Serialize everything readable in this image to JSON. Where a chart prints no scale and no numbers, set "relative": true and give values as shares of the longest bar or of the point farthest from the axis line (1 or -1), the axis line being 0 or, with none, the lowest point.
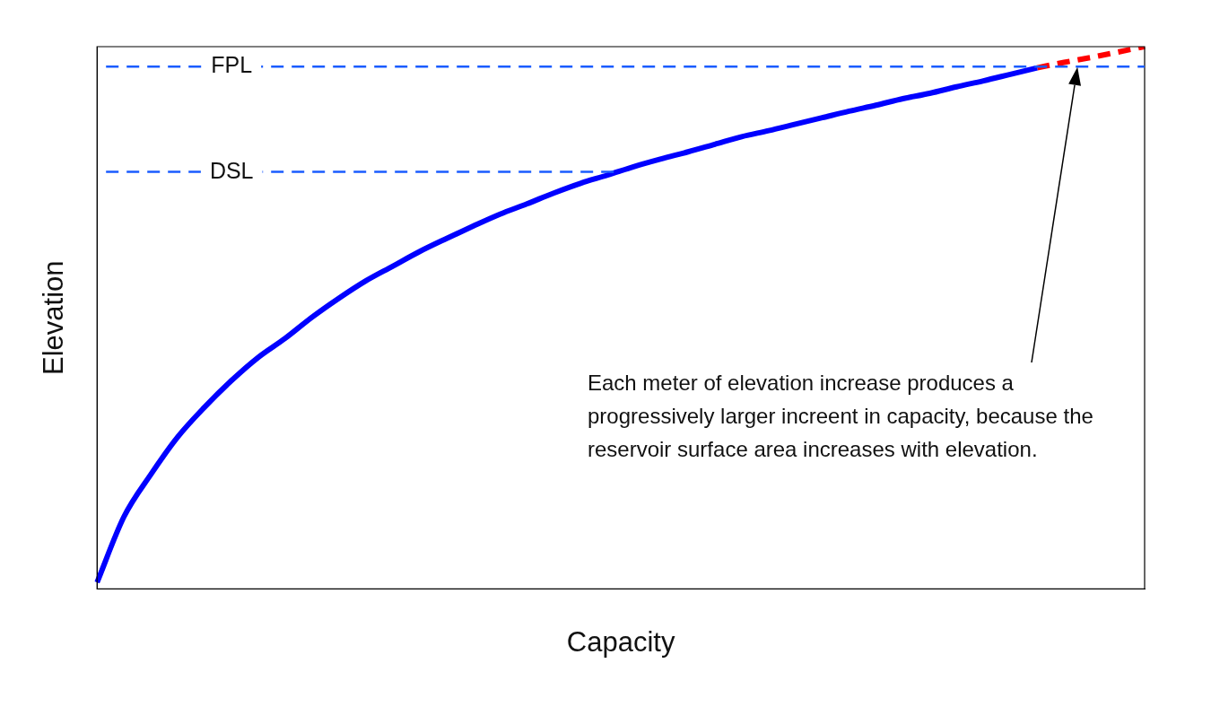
{
  "chart_data": {
    "type": "line",
    "relative": true,
    "xlabel": "Capacity",
    "ylabel": "Elevation",
    "grid": false,
    "legend": false,
    "marker": "none",
    "categories": [
      null,
      null,
      null,
      null,
      null,
      null,
      null,
      null,
      null,
      null,
      null,
      null,
      null,
      null,
      null,
      null,
      null,
      null,
      null,
      null,
      null,
      null,
      null,
      null,
      null,
      null,
      null,
      null,
      null,
      null,
      null,
      null,
      null,
      null,
      null,
      null,
      null,
      null,
      null,
      null
    ],
    "series": [
      {
        "color": "#0000ff",
        "line_style": "solid",
        "values": [
          0.012,
          0.133,
          0.211,
          0.28,
          0.335,
          0.384,
          0.427,
          0.462,
          0.501,
          0.536,
          0.568,
          0.595,
          0.622,
          0.646,
          0.669,
          0.691,
          0.71,
          0.73,
          0.748,
          0.763,
          0.779,
          0.793,
          0.806,
          0.82,
          0.834,
          0.845,
          0.857,
          0.869,
          0.881,
          0.892,
          0.904,
          0.914,
          0.926,
          0.937,
          0.949,
          0.961,
          null,
          null,
          null,
          null
        ]
      },
      {
        "color": "#ff0000",
        "line_style": "dashed",
        "values": [
          null,
          null,
          null,
          null,
          null,
          null,
          null,
          null,
          null,
          null,
          null,
          null,
          null,
          null,
          null,
          null,
          null,
          null,
          null,
          null,
          null,
          null,
          null,
          null,
          null,
          null,
          null,
          null,
          null,
          null,
          null,
          null,
          null,
          null,
          null,
          0.961,
          0.971,
          0.98,
          0.99,
          1
        ]
      }
    ],
    "ref_lines": [
      {
        "axis": "y",
        "value": 0.963,
        "label": "FPL",
        "color": "#1a5cff",
        "line_style": "dashed"
      },
      {
        "axis": "y",
        "value": 0.769,
        "label": "DSL",
        "color": "#1a5cff",
        "line_style": "dashed"
      }
    ],
    "annotations": [
      "Each meter of elevation increase produces a progressively larger increent in capacity, because the reservoir surface area increases with elevation."
    ]
  }
}
